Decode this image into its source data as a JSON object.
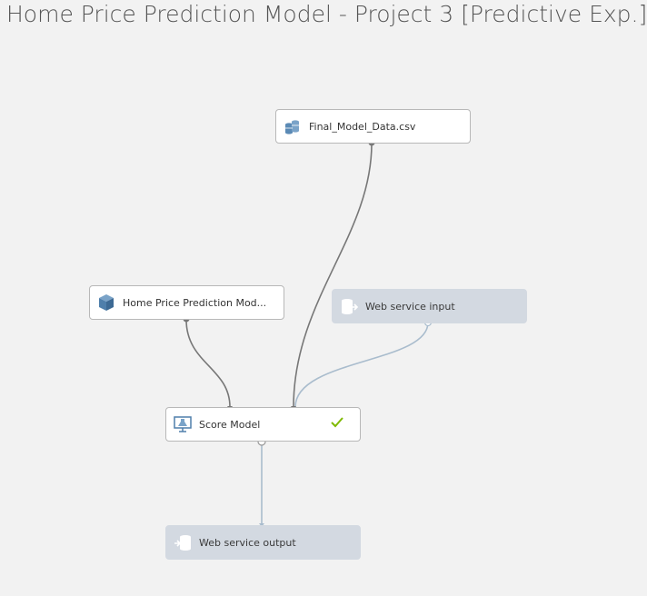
{
  "title": "Home Price Prediction Model - Project 3 [Predictive Exp.]",
  "nodes": {
    "dataset": {
      "label": "Final_Model_Data.csv",
      "icon": "database-icon"
    },
    "trained_model": {
      "label": "Home Price Prediction Mod...",
      "icon": "cube-icon"
    },
    "web_input": {
      "label": "Web service input",
      "icon": "web-service-input-icon"
    },
    "score_model": {
      "label": "Score Model",
      "icon": "score-model-icon",
      "status": "completed"
    },
    "web_output": {
      "label": "Web service output",
      "icon": "web-service-output-icon"
    }
  },
  "colors": {
    "background": "#f2f2f2",
    "node_bg": "#ffffff",
    "web_service_bg": "#d3d9e1",
    "connector": "#777777",
    "web_connector": "#a9bccd",
    "check": "#7fba00"
  }
}
